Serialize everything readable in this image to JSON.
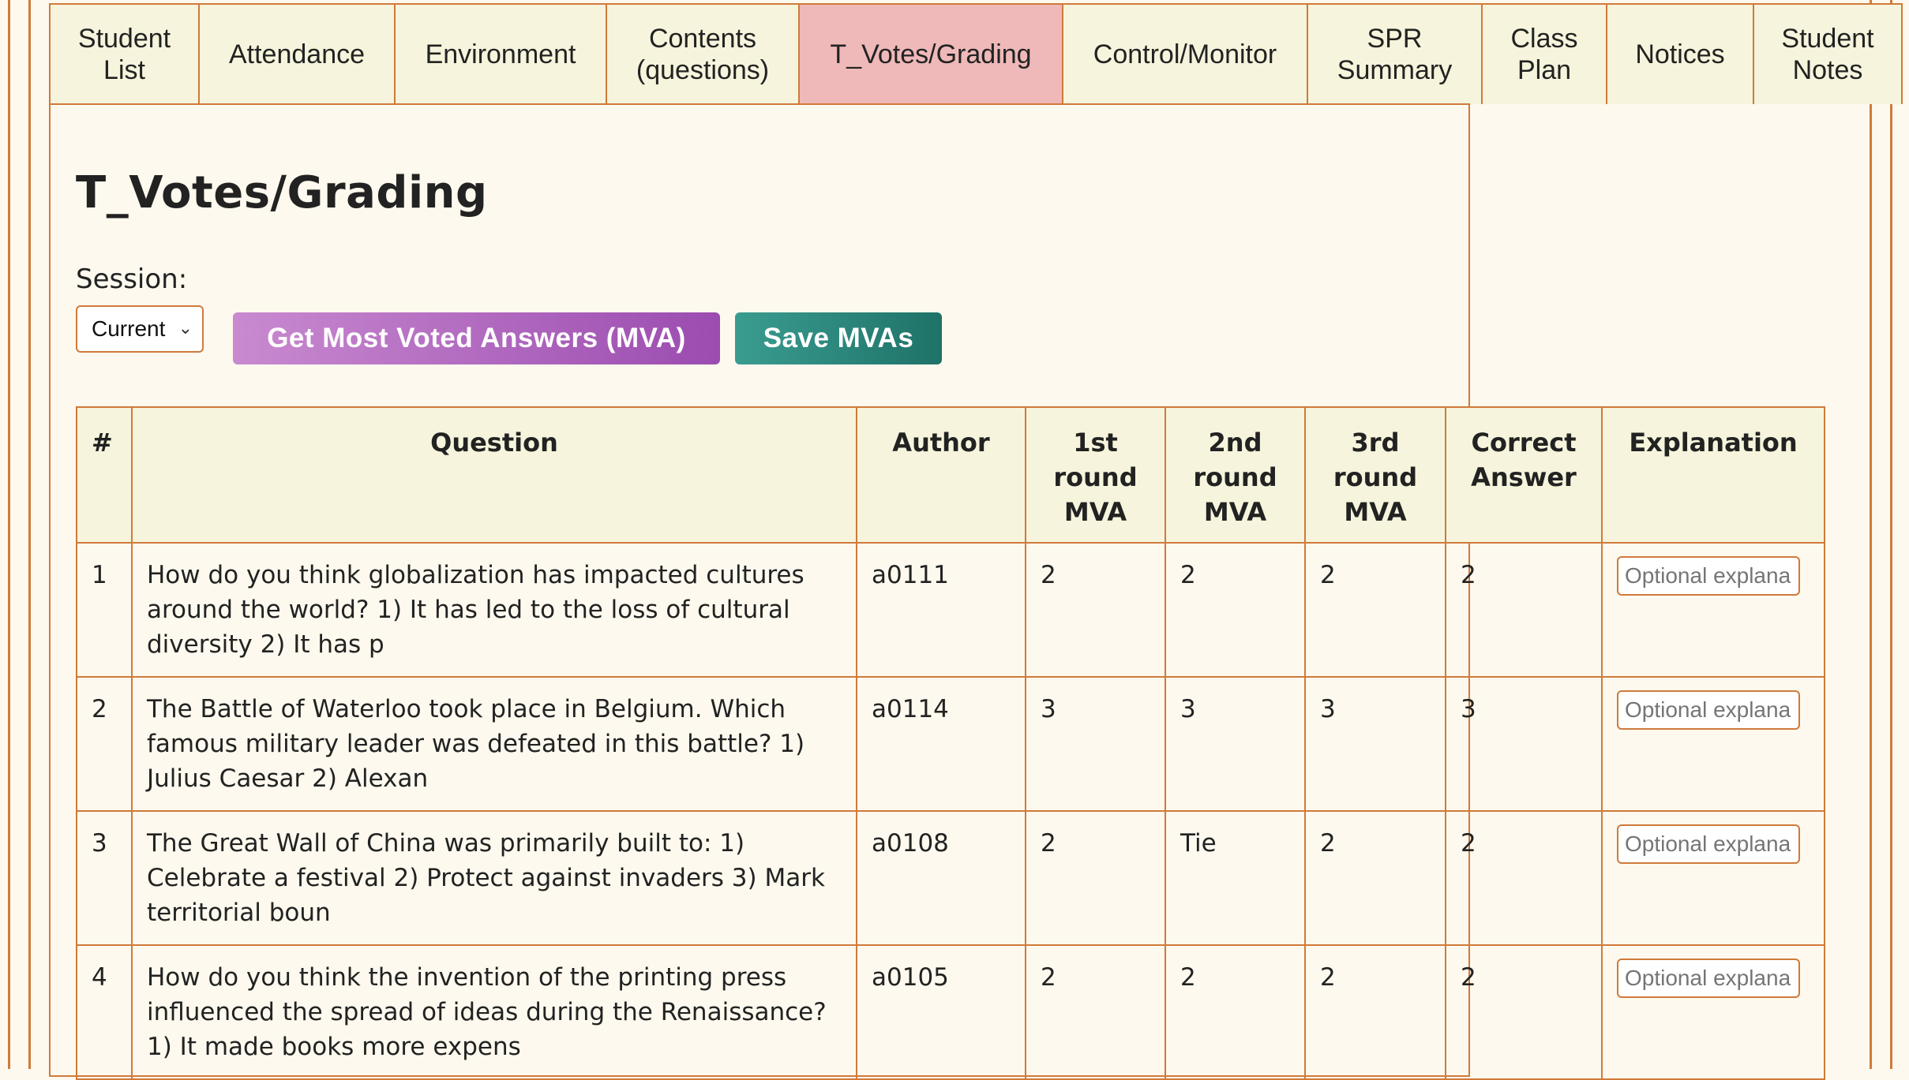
{
  "tabs": [
    {
      "label": "Student\nList",
      "active": false
    },
    {
      "label": "Attendance",
      "active": false
    },
    {
      "label": "Environment",
      "active": false
    },
    {
      "label": "Contents\n(questions)",
      "active": false
    },
    {
      "label": "T_Votes/Grading",
      "active": true
    },
    {
      "label": "Control/Monitor",
      "active": false
    },
    {
      "label": "SPR\nSummary",
      "active": false
    },
    {
      "label": "Class\nPlan",
      "active": false
    },
    {
      "label": "Notices",
      "active": false
    },
    {
      "label": "Student\nNotes",
      "active": false
    }
  ],
  "page": {
    "title": "T_Votes/Grading",
    "session_label": "Session:",
    "session_value": "Current",
    "mva_button": "Get Most Voted Answers (MVA)",
    "save_button": "Save MVAs"
  },
  "table": {
    "headers": [
      "#",
      "Question",
      "Author",
      "1st round MVA",
      "2nd round MVA",
      "3rd round MVA",
      "Correct Answer",
      "Explanation"
    ],
    "explanation_placeholder": "Optional explana",
    "rows": [
      {
        "num": "1",
        "question": "How do you think globalization has impacted cultures around the world? 1) It has led to the loss of cultural diversity 2) It has p",
        "author": "a0111",
        "r1": "2",
        "r2": "2",
        "r3": "2",
        "correct": "2"
      },
      {
        "num": "2",
        "question": "The Battle of Waterloo took place in Belgium. Which famous military leader was defeated in this battle? 1) Julius Caesar 2) Alexan",
        "author": "a0114",
        "r1": "3",
        "r2": "3",
        "r3": "3",
        "correct": "3"
      },
      {
        "num": "3",
        "question": "The Great Wall of China was primarily built to: 1) Celebrate a festival 2) Protect against invaders 3) Mark territorial boun",
        "author": "a0108",
        "r1": "2",
        "r2": "Tie",
        "r3": "2",
        "correct": "2"
      },
      {
        "num": "4",
        "question": "How do you think the invention of the printing press influenced the spread of ideas during the Renaissance? 1) It made books more expens",
        "author": "a0105",
        "r1": "2",
        "r2": "2",
        "r3": "2",
        "correct": "2"
      }
    ]
  }
}
